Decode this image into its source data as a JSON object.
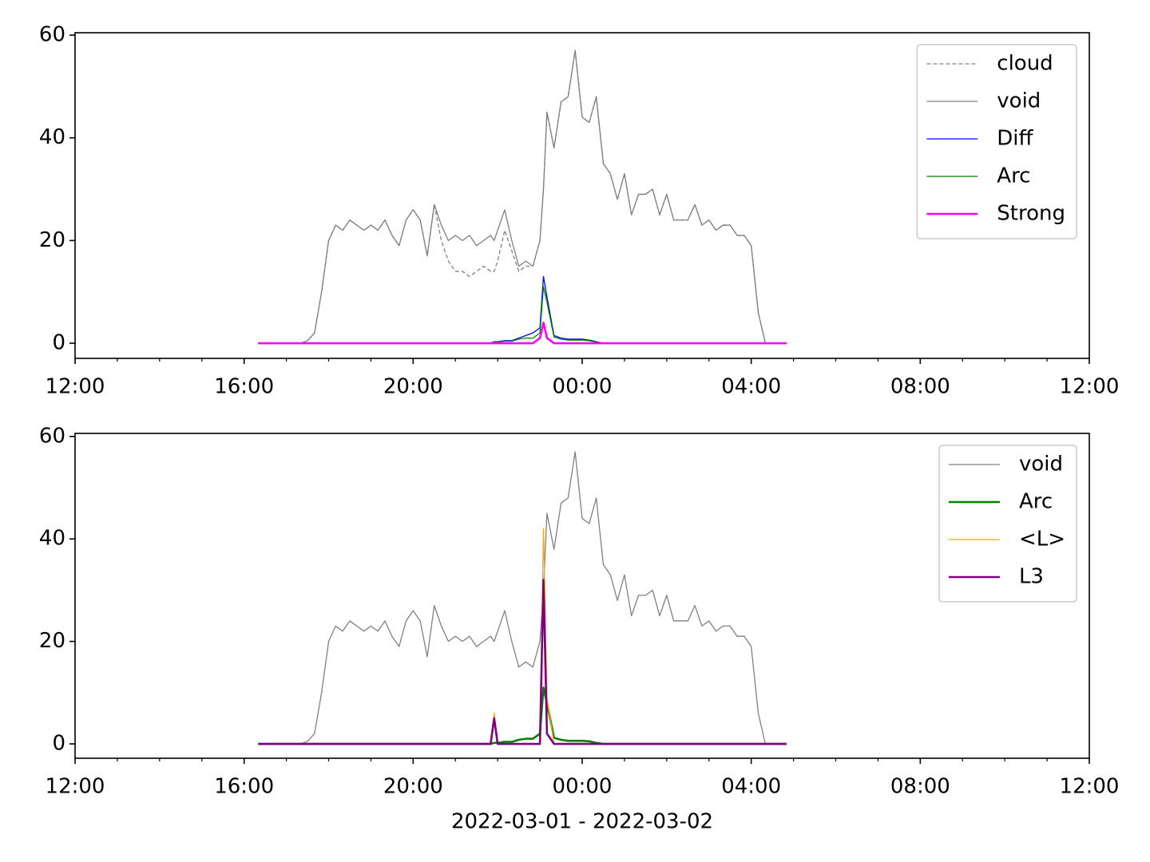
{
  "chart_data": [
    {
      "type": "line",
      "x": [
        "2022-03-01T16:20",
        "2022-03-01T16:30",
        "2022-03-01T16:40",
        "2022-03-01T16:50",
        "2022-03-01T17:00",
        "2022-03-01T17:10",
        "2022-03-01T17:20",
        "2022-03-01T17:30",
        "2022-03-01T17:40",
        "2022-03-01T17:50",
        "2022-03-01T18:00",
        "2022-03-01T18:10",
        "2022-03-01T18:20",
        "2022-03-01T18:30",
        "2022-03-01T18:40",
        "2022-03-01T18:50",
        "2022-03-01T19:00",
        "2022-03-01T19:10",
        "2022-03-01T19:20",
        "2022-03-01T19:30",
        "2022-03-01T19:40",
        "2022-03-01T19:50",
        "2022-03-01T20:00",
        "2022-03-01T20:10",
        "2022-03-01T20:20",
        "2022-03-01T20:30",
        "2022-03-01T20:40",
        "2022-03-01T20:50",
        "2022-03-01T21:00",
        "2022-03-01T21:10",
        "2022-03-01T21:20",
        "2022-03-01T21:30",
        "2022-03-01T21:40",
        "2022-03-01T21:50",
        "2022-03-01T21:55",
        "2022-03-01T22:00",
        "2022-03-01T22:10",
        "2022-03-01T22:20",
        "2022-03-01T22:30",
        "2022-03-01T22:40",
        "2022-03-01T22:50",
        "2022-03-01T23:00",
        "2022-03-01T23:05",
        "2022-03-01T23:10",
        "2022-03-01T23:20",
        "2022-03-01T23:30",
        "2022-03-01T23:40",
        "2022-03-01T23:50",
        "2022-03-02T00:00",
        "2022-03-02T00:10",
        "2022-03-02T00:20",
        "2022-03-02T00:30",
        "2022-03-02T00:40",
        "2022-03-02T00:50",
        "2022-03-02T01:00",
        "2022-03-02T01:10",
        "2022-03-02T01:20",
        "2022-03-02T01:30",
        "2022-03-02T01:40",
        "2022-03-02T01:50",
        "2022-03-02T02:00",
        "2022-03-02T02:10",
        "2022-03-02T02:20",
        "2022-03-02T02:30",
        "2022-03-02T02:40",
        "2022-03-02T02:50",
        "2022-03-02T03:00",
        "2022-03-02T03:10",
        "2022-03-02T03:20",
        "2022-03-02T03:30",
        "2022-03-02T03:40",
        "2022-03-02T03:50",
        "2022-03-02T04:00",
        "2022-03-02T04:10",
        "2022-03-02T04:20",
        "2022-03-02T04:30",
        "2022-03-02T04:40",
        "2022-03-02T04:50"
      ],
      "series": [
        {
          "name": "cloud",
          "color": "#808080",
          "linewidth": 1.3,
          "linestyle": "dashed",
          "values": [
            0,
            0,
            0,
            0,
            0,
            0,
            0,
            0.5,
            2,
            10,
            20,
            23,
            22,
            24,
            23,
            22,
            23,
            22,
            24,
            21,
            19,
            24,
            26,
            24,
            17,
            27,
            20,
            16,
            14,
            14,
            13,
            14,
            15,
            14,
            14,
            16,
            22,
            18,
            14,
            15,
            15,
            20,
            30,
            45,
            38,
            47,
            48,
            57,
            44,
            43,
            48,
            35,
            33,
            28,
            33,
            25,
            29,
            29,
            30,
            25,
            29,
            24,
            24,
            24,
            27,
            23,
            24,
            22,
            23,
            23,
            21,
            21,
            19,
            6,
            0,
            0,
            0,
            0
          ]
        },
        {
          "name": "void",
          "color": "#808080",
          "linewidth": 1.3,
          "values": [
            0,
            0,
            0,
            0,
            0,
            0,
            0,
            0.5,
            2,
            10,
            20,
            23,
            22,
            24,
            23,
            22,
            23,
            22,
            24,
            21,
            19,
            24,
            26,
            24,
            17,
            27,
            23,
            20,
            21,
            20,
            21,
            19,
            20,
            21,
            20,
            22,
            26,
            20,
            15,
            16,
            15,
            20,
            30,
            45,
            38,
            47,
            48,
            57,
            44,
            43,
            48,
            35,
            33,
            28,
            33,
            25,
            29,
            29,
            30,
            25,
            29,
            24,
            24,
            24,
            27,
            23,
            24,
            22,
            23,
            23,
            21,
            21,
            19,
            6,
            0,
            0,
            0,
            0
          ]
        },
        {
          "name": "Diff",
          "color": "#0000ff",
          "linewidth": 1.3,
          "values": [
            0,
            0,
            0,
            0,
            0,
            0,
            0,
            0,
            0,
            0,
            0,
            0,
            0,
            0,
            0,
            0,
            0,
            0,
            0,
            0,
            0,
            0,
            0,
            0,
            0,
            0,
            0,
            0,
            0,
            0,
            0,
            0,
            0,
            0,
            0.3,
            0.3,
            0.5,
            0.5,
            1,
            1.5,
            2,
            3,
            13,
            9,
            1.5,
            1,
            0.8,
            0.8,
            0.8,
            0.6,
            0.3,
            0,
            0,
            0,
            0,
            0,
            0,
            0,
            0,
            0,
            0,
            0,
            0,
            0,
            0,
            0,
            0,
            0,
            0,
            0,
            0,
            0,
            0,
            0,
            0,
            0,
            0,
            0
          ]
        },
        {
          "name": "Arc",
          "color": "#008000",
          "linewidth": 1.3,
          "values": [
            0,
            0,
            0,
            0,
            0,
            0,
            0,
            0,
            0,
            0,
            0,
            0,
            0,
            0,
            0,
            0,
            0,
            0,
            0,
            0,
            0,
            0,
            0,
            0,
            0,
            0,
            0,
            0,
            0,
            0,
            0,
            0,
            0,
            0,
            0.2,
            0.2,
            0.4,
            0.4,
            0.8,
            1,
            1,
            2,
            11,
            8,
            1.2,
            0.8,
            0.6,
            0.6,
            0.6,
            0.5,
            0.2,
            0,
            0,
            0,
            0,
            0,
            0,
            0,
            0,
            0,
            0,
            0,
            0,
            0,
            0,
            0,
            0,
            0,
            0,
            0,
            0,
            0,
            0,
            0,
            0,
            0,
            0,
            0
          ]
        },
        {
          "name": "Strong",
          "color": "#ff00ff",
          "linewidth": 2.6,
          "values": [
            0,
            0,
            0,
            0,
            0,
            0,
            0,
            0,
            0,
            0,
            0,
            0,
            0,
            0,
            0,
            0,
            0,
            0,
            0,
            0,
            0,
            0,
            0,
            0,
            0,
            0,
            0,
            0,
            0,
            0,
            0,
            0,
            0,
            0,
            0,
            0,
            0,
            0,
            0,
            0,
            0,
            1,
            4,
            1,
            0,
            0,
            0,
            0,
            0,
            0,
            0,
            0,
            0,
            0,
            0,
            0,
            0,
            0,
            0,
            0,
            0,
            0,
            0,
            0,
            0,
            0,
            0,
            0,
            0,
            0,
            0,
            0,
            0,
            0,
            0,
            0,
            0,
            0
          ]
        }
      ],
      "xlim": [
        "2022-03-01T12:00",
        "2022-03-02T12:00"
      ],
      "xticks": [
        {
          "value": "2022-03-01T12:00",
          "label": "12:00"
        },
        {
          "value": "2022-03-01T16:00",
          "label": "16:00"
        },
        {
          "value": "2022-03-01T20:00",
          "label": "20:00"
        },
        {
          "value": "2022-03-02T00:00",
          "label": "00:00"
        },
        {
          "value": "2022-03-02T04:00",
          "label": "04:00"
        },
        {
          "value": "2022-03-02T08:00",
          "label": "08:00"
        },
        {
          "value": "2022-03-02T12:00",
          "label": "12:00"
        }
      ],
      "xminorticks": [
        "2022-03-01T13:00",
        "2022-03-01T14:00",
        "2022-03-01T15:00",
        "2022-03-01T17:00",
        "2022-03-01T18:00",
        "2022-03-01T19:00",
        "2022-03-01T21:00",
        "2022-03-01T22:00",
        "2022-03-01T23:00",
        "2022-03-02T01:00",
        "2022-03-02T02:00",
        "2022-03-02T03:00",
        "2022-03-02T05:00",
        "2022-03-02T06:00",
        "2022-03-02T07:00",
        "2022-03-02T09:00",
        "2022-03-02T10:00",
        "2022-03-02T11:00"
      ],
      "ylim": [
        -2.95,
        60.47
      ],
      "yticks": [
        0,
        20,
        40,
        60
      ],
      "legend": "upper right"
    },
    {
      "type": "line",
      "x": [
        "2022-03-01T16:20",
        "2022-03-01T16:30",
        "2022-03-01T16:40",
        "2022-03-01T16:50",
        "2022-03-01T17:00",
        "2022-03-01T17:10",
        "2022-03-01T17:20",
        "2022-03-01T17:30",
        "2022-03-01T17:40",
        "2022-03-01T17:50",
        "2022-03-01T18:00",
        "2022-03-01T18:10",
        "2022-03-01T18:20",
        "2022-03-01T18:30",
        "2022-03-01T18:40",
        "2022-03-01T18:50",
        "2022-03-01T19:00",
        "2022-03-01T19:10",
        "2022-03-01T19:20",
        "2022-03-01T19:30",
        "2022-03-01T19:40",
        "2022-03-01T19:50",
        "2022-03-01T20:00",
        "2022-03-01T20:10",
        "2022-03-01T20:20",
        "2022-03-01T20:30",
        "2022-03-01T20:40",
        "2022-03-01T20:50",
        "2022-03-01T21:00",
        "2022-03-01T21:10",
        "2022-03-01T21:20",
        "2022-03-01T21:30",
        "2022-03-01T21:40",
        "2022-03-01T21:50",
        "2022-03-01T21:55",
        "2022-03-01T22:00",
        "2022-03-01T22:10",
        "2022-03-01T22:20",
        "2022-03-01T22:30",
        "2022-03-01T22:40",
        "2022-03-01T22:50",
        "2022-03-01T23:00",
        "2022-03-01T23:05",
        "2022-03-01T23:10",
        "2022-03-01T23:20",
        "2022-03-01T23:30",
        "2022-03-01T23:40",
        "2022-03-01T23:50",
        "2022-03-02T00:00",
        "2022-03-02T00:10",
        "2022-03-02T00:20",
        "2022-03-02T00:30",
        "2022-03-02T00:40",
        "2022-03-02T00:50",
        "2022-03-02T01:00",
        "2022-03-02T01:10",
        "2022-03-02T01:20",
        "2022-03-02T01:30",
        "2022-03-02T01:40",
        "2022-03-02T01:50",
        "2022-03-02T02:00",
        "2022-03-02T02:10",
        "2022-03-02T02:20",
        "2022-03-02T02:30",
        "2022-03-02T02:40",
        "2022-03-02T02:50",
        "2022-03-02T03:00",
        "2022-03-02T03:10",
        "2022-03-02T03:20",
        "2022-03-02T03:30",
        "2022-03-02T03:40",
        "2022-03-02T03:50",
        "2022-03-02T04:00",
        "2022-03-02T04:10",
        "2022-03-02T04:20",
        "2022-03-02T04:30",
        "2022-03-02T04:40",
        "2022-03-02T04:50"
      ],
      "series": [
        {
          "name": "void",
          "color": "#808080",
          "linewidth": 1.3,
          "values": [
            0,
            0,
            0,
            0,
            0,
            0,
            0,
            0.5,
            2,
            10,
            20,
            23,
            22,
            24,
            23,
            22,
            23,
            22,
            24,
            21,
            19,
            24,
            26,
            24,
            17,
            27,
            23,
            20,
            21,
            20,
            21,
            19,
            20,
            21,
            20,
            22,
            26,
            20,
            15,
            16,
            15,
            20,
            30,
            45,
            38,
            47,
            48,
            57,
            44,
            43,
            48,
            35,
            33,
            28,
            33,
            25,
            29,
            29,
            30,
            25,
            29,
            24,
            24,
            24,
            27,
            23,
            24,
            22,
            23,
            23,
            21,
            21,
            19,
            6,
            0,
            0,
            0,
            0
          ]
        },
        {
          "name": "Arc",
          "color": "#008000",
          "linewidth": 2.6,
          "values": [
            0,
            0,
            0,
            0,
            0,
            0,
            0,
            0,
            0,
            0,
            0,
            0,
            0,
            0,
            0,
            0,
            0,
            0,
            0,
            0,
            0,
            0,
            0,
            0,
            0,
            0,
            0,
            0,
            0,
            0,
            0,
            0,
            0,
            0,
            0.2,
            0.2,
            0.4,
            0.4,
            0.8,
            1,
            1,
            2,
            11,
            8,
            1.2,
            0.8,
            0.6,
            0.6,
            0.6,
            0.5,
            0.2,
            0,
            0,
            0,
            0,
            0,
            0,
            0,
            0,
            0,
            0,
            0,
            0,
            0,
            0,
            0,
            0,
            0,
            0,
            0,
            0,
            0,
            0,
            0,
            0,
            0,
            0,
            0
          ]
        },
        {
          "name": "<L>",
          "color": "#ffa500",
          "linewidth": 1.3,
          "values": [
            0,
            0,
            0,
            0,
            0,
            0,
            0,
            0,
            0,
            0,
            0,
            0,
            0,
            0,
            0,
            0,
            0,
            0,
            0,
            0,
            0,
            0,
            0,
            0,
            0,
            0,
            0,
            0,
            0,
            0,
            0,
            0,
            0,
            0,
            6,
            0,
            0,
            0,
            0,
            0,
            0,
            0,
            42,
            9,
            0,
            0,
            0,
            0,
            0,
            0,
            0,
            0,
            0,
            0,
            0,
            0,
            0,
            0,
            0,
            0,
            0,
            0,
            0,
            0,
            0,
            0,
            0,
            0,
            0,
            0,
            0,
            0,
            0,
            0,
            0,
            0,
            0,
            0
          ]
        },
        {
          "name": "L3",
          "color": "#800080",
          "linewidth": 2.6,
          "values": [
            0,
            0,
            0,
            0,
            0,
            0,
            0,
            0,
            0,
            0,
            0,
            0,
            0,
            0,
            0,
            0,
            0,
            0,
            0,
            0,
            0,
            0,
            0,
            0,
            0,
            0,
            0,
            0,
            0,
            0,
            0,
            0,
            0,
            0,
            5,
            0,
            0,
            0,
            0,
            0,
            0,
            0,
            32,
            2,
            0,
            0,
            0,
            0,
            0,
            0,
            0,
            0,
            0,
            0,
            0,
            0,
            0,
            0,
            0,
            0,
            0,
            0,
            0,
            0,
            0,
            0,
            0,
            0,
            0,
            0,
            0,
            0,
            0,
            0,
            0,
            0,
            0,
            0
          ]
        }
      ],
      "xlim": [
        "2022-03-01T12:00",
        "2022-03-02T12:00"
      ],
      "xticks": [
        {
          "value": "2022-03-01T12:00",
          "label": "12:00"
        },
        {
          "value": "2022-03-01T16:00",
          "label": "16:00"
        },
        {
          "value": "2022-03-01T20:00",
          "label": "20:00"
        },
        {
          "value": "2022-03-02T00:00",
          "label": "00:00"
        },
        {
          "value": "2022-03-02T04:00",
          "label": "04:00"
        },
        {
          "value": "2022-03-02T08:00",
          "label": "08:00"
        },
        {
          "value": "2022-03-02T12:00",
          "label": "12:00"
        }
      ],
      "xminorticks": [
        "2022-03-01T13:00",
        "2022-03-01T14:00",
        "2022-03-01T15:00",
        "2022-03-01T17:00",
        "2022-03-01T18:00",
        "2022-03-01T19:00",
        "2022-03-01T21:00",
        "2022-03-01T22:00",
        "2022-03-01T23:00",
        "2022-03-02T01:00",
        "2022-03-02T02:00",
        "2022-03-02T03:00",
        "2022-03-02T05:00",
        "2022-03-02T06:00",
        "2022-03-02T07:00",
        "2022-03-02T09:00",
        "2022-03-02T10:00",
        "2022-03-02T11:00"
      ],
      "ylim": [
        -2.8,
        60.6
      ],
      "yticks": [
        0,
        20,
        40,
        60
      ],
      "legend": "upper right",
      "xlabel": "2022-03-01 - 2022-03-02"
    }
  ]
}
